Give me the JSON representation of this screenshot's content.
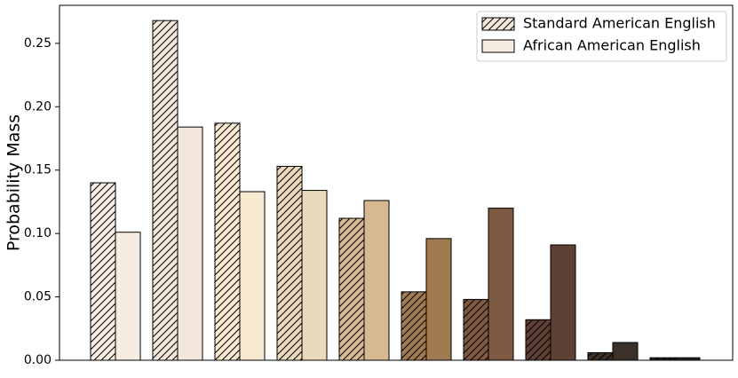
{
  "chart_data": {
    "type": "bar",
    "y_label": "Probability Mass",
    "categories": [
      null,
      null,
      null,
      null,
      null,
      null,
      null,
      null,
      null,
      null
    ],
    "series": [
      {
        "name": "Standard American English",
        "color": "#f3e6da",
        "hatch": "///",
        "colors": [
          "#f6ece2",
          "#f3e6da",
          "#f7e8d0",
          "#ead9bb",
          "#d6b990",
          "#a07a50",
          "#7e5a43",
          "#5e4034",
          "#3b3128",
          "#2a2420"
        ],
        "values": [
          0.14,
          0.268,
          0.187,
          0.153,
          0.112,
          0.054,
          0.048,
          0.032,
          0.006,
          0.002
        ]
      },
      {
        "name": "African American English",
        "color": "#f6ece2",
        "colors": [
          "#f6ece2",
          "#f3e6da",
          "#f7e8d0",
          "#ead9bb",
          "#d6b990",
          "#a07a50",
          "#7e5a43",
          "#5e4034",
          "#3b3128",
          "#2a2420"
        ],
        "values": [
          0.101,
          0.184,
          0.133,
          0.134,
          0.126,
          0.096,
          0.12,
          0.091,
          0.014,
          0.002
        ]
      }
    ],
    "ylim": [
      0,
      0.28
    ],
    "yticks": [
      {
        "value": 0,
        "label": "0.00"
      },
      {
        "value": 0.05,
        "label": "0.05"
      },
      {
        "value": 0.1,
        "label": "0.10"
      },
      {
        "value": 0.15,
        "label": "0.15"
      },
      {
        "value": 0.2,
        "label": "0.20"
      },
      {
        "value": 0.25,
        "label": "0.25"
      }
    ],
    "legend": "upper right",
    "grid": false
  }
}
